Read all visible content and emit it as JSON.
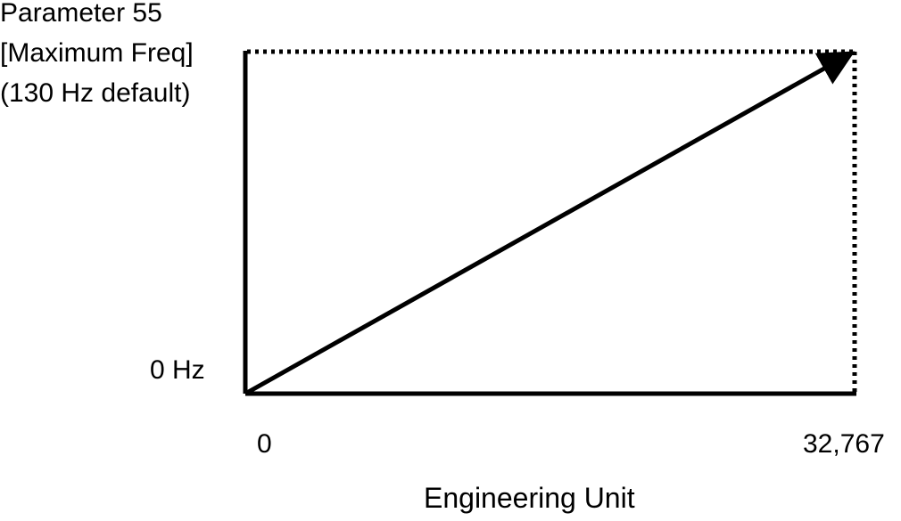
{
  "chart_data": {
    "type": "line",
    "title": "",
    "xlabel": "Engineering Unit",
    "ylabel": "",
    "y_top_label_lines": [
      "Parameter 55",
      "[Maximum Freq]",
      "(130 Hz default)"
    ],
    "y_bottom_label": "0 Hz",
    "x_tick_labels": [
      "0",
      "32,767"
    ],
    "xlim": [
      0,
      32767
    ],
    "ylim": [
      0,
      130
    ],
    "series": [
      {
        "x": [
          0,
          32767
        ],
        "y": [
          0,
          130
        ]
      }
    ],
    "grid": false,
    "legend": "none",
    "reference_lines": "dotted",
    "colors": {
      "line": "#000000",
      "axes": "#000000",
      "background": "#ffffff"
    }
  }
}
